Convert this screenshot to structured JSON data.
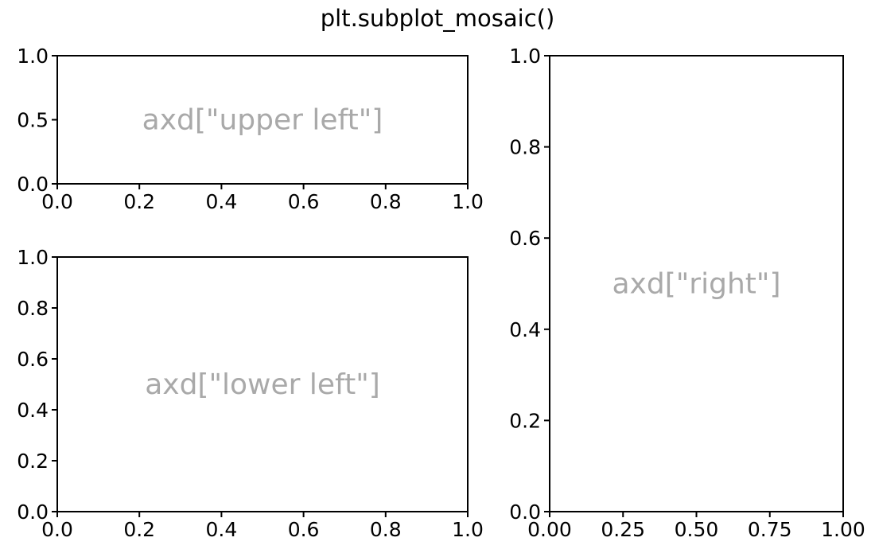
{
  "figure": {
    "suptitle": "plt.subplot_mosaic()"
  },
  "chart_data": [
    {
      "type": "scatter",
      "id": "upper-left",
      "annotation": "axd[\"upper left\"]",
      "annotation_x": 0.5,
      "annotation_y": 0.5,
      "annotation_color": "#a9a9a9",
      "series": [],
      "xlim": [
        0,
        1
      ],
      "ylim": [
        0,
        1
      ],
      "xticks": [
        0.0,
        0.2,
        0.4,
        0.6,
        0.8,
        1.0
      ],
      "xtick_labels": [
        "0.0",
        "0.2",
        "0.4",
        "0.6",
        "0.8",
        "1.0"
      ],
      "yticks": [
        0.0,
        0.5,
        1.0
      ],
      "ytick_labels": [
        "0.0",
        "0.5",
        "1.0"
      ],
      "grid": false,
      "xlabel": "",
      "ylabel": ""
    },
    {
      "type": "scatter",
      "id": "lower-left",
      "annotation": "axd[\"lower left\"]",
      "annotation_x": 0.5,
      "annotation_y": 0.5,
      "annotation_color": "#a9a9a9",
      "series": [],
      "xlim": [
        0,
        1
      ],
      "ylim": [
        0,
        1
      ],
      "xticks": [
        0.0,
        0.2,
        0.4,
        0.6,
        0.8,
        1.0
      ],
      "xtick_labels": [
        "0.0",
        "0.2",
        "0.4",
        "0.6",
        "0.8",
        "1.0"
      ],
      "yticks": [
        0.0,
        0.2,
        0.4,
        0.6,
        0.8,
        1.0
      ],
      "ytick_labels": [
        "0.0",
        "0.2",
        "0.4",
        "0.6",
        "0.8",
        "1.0"
      ],
      "grid": false,
      "xlabel": "",
      "ylabel": ""
    },
    {
      "type": "scatter",
      "id": "right",
      "annotation": "axd[\"right\"]",
      "annotation_x": 0.5,
      "annotation_y": 0.5,
      "annotation_color": "#a9a9a9",
      "series": [],
      "xlim": [
        0,
        1
      ],
      "ylim": [
        0,
        1
      ],
      "xticks": [
        0.0,
        0.25,
        0.5,
        0.75,
        1.0
      ],
      "xtick_labels": [
        "0.00",
        "0.25",
        "0.50",
        "0.75",
        "1.00"
      ],
      "yticks": [
        0.0,
        0.2,
        0.4,
        0.6,
        0.8,
        1.0
      ],
      "ytick_labels": [
        "0.0",
        "0.2",
        "0.4",
        "0.6",
        "0.8",
        "1.0"
      ],
      "grid": false,
      "xlabel": "",
      "ylabel": ""
    }
  ]
}
